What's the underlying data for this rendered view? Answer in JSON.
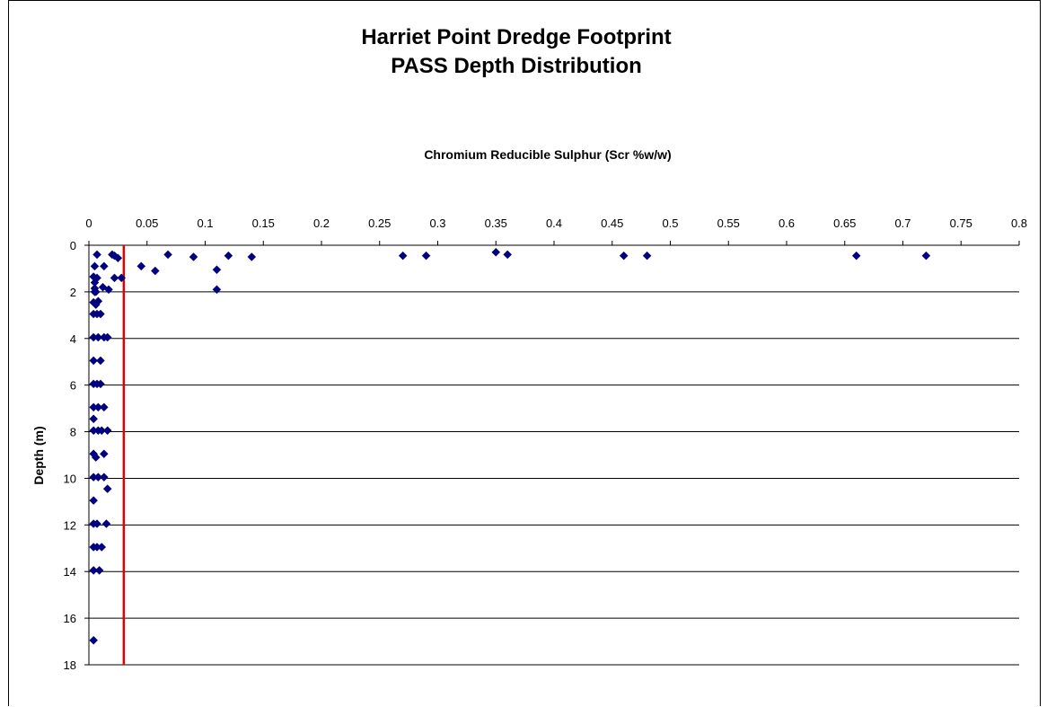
{
  "chart_data": {
    "type": "scatter",
    "title": "Harriet Point Dredge Footprint",
    "subtitle": "PASS Depth Distribution",
    "xlabel": "Chromium Reducible Sulphur (Scr %w/w)",
    "ylabel": "Depth (m)",
    "xlim": [
      0,
      0.8
    ],
    "ylim": [
      0,
      18
    ],
    "y_inverted": true,
    "x_axis_position": "top",
    "x_ticks": [
      "0",
      "0.05",
      "0.1",
      "0.15",
      "0.2",
      "0.25",
      "0.3",
      "0.35",
      "0.4",
      "0.45",
      "0.5",
      "0.55",
      "0.6",
      "0.65",
      "0.7",
      "0.75",
      "0.8"
    ],
    "y_ticks": [
      "0",
      "2",
      "4",
      "6",
      "8",
      "10",
      "12",
      "14",
      "16",
      "18"
    ],
    "grid": "horizontal",
    "marker_color": "#000080",
    "reference_line": {
      "x": 0.03,
      "color": "#e00000"
    },
    "series": [
      {
        "points": [
          [
            0.007,
            0.4
          ],
          [
            0.02,
            0.4
          ],
          [
            0.025,
            0.55
          ],
          [
            0.022,
            0.45
          ],
          [
            0.068,
            0.4
          ],
          [
            0.09,
            0.5
          ],
          [
            0.12,
            0.45
          ],
          [
            0.14,
            0.5
          ],
          [
            0.27,
            0.45
          ],
          [
            0.29,
            0.45
          ],
          [
            0.35,
            0.3
          ],
          [
            0.36,
            0.4
          ],
          [
            0.46,
            0.45
          ],
          [
            0.48,
            0.45
          ],
          [
            0.66,
            0.45
          ],
          [
            0.72,
            0.45
          ],
          [
            0.005,
            0.9
          ],
          [
            0.013,
            0.9
          ],
          [
            0.045,
            0.9
          ],
          [
            0.057,
            1.1
          ],
          [
            0.11,
            1.05
          ],
          [
            0.004,
            1.35
          ],
          [
            0.007,
            1.4
          ],
          [
            0.022,
            1.4
          ],
          [
            0.028,
            1.4
          ],
          [
            0.005,
            1.6
          ],
          [
            0.005,
            1.85
          ],
          [
            0.012,
            1.8
          ],
          [
            0.017,
            1.9
          ],
          [
            0.11,
            1.9
          ],
          [
            0.005,
            2.0
          ],
          [
            0.006,
            2.0
          ],
          [
            0.004,
            2.45
          ],
          [
            0.006,
            2.55
          ],
          [
            0.008,
            2.4
          ],
          [
            0.004,
            2.95
          ],
          [
            0.007,
            2.95
          ],
          [
            0.01,
            2.95
          ],
          [
            0.004,
            3.95
          ],
          [
            0.008,
            3.95
          ],
          [
            0.013,
            3.95
          ],
          [
            0.016,
            3.95
          ],
          [
            0.004,
            4.95
          ],
          [
            0.01,
            4.95
          ],
          [
            0.004,
            5.95
          ],
          [
            0.007,
            5.95
          ],
          [
            0.01,
            5.95
          ],
          [
            0.004,
            6.95
          ],
          [
            0.008,
            6.95
          ],
          [
            0.013,
            6.95
          ],
          [
            0.004,
            7.45
          ],
          [
            0.004,
            7.95
          ],
          [
            0.008,
            7.95
          ],
          [
            0.011,
            7.95
          ],
          [
            0.016,
            7.95
          ],
          [
            0.004,
            8.95
          ],
          [
            0.006,
            9.1
          ],
          [
            0.013,
            8.95
          ],
          [
            0.004,
            9.95
          ],
          [
            0.008,
            9.95
          ],
          [
            0.013,
            9.95
          ],
          [
            0.016,
            10.45
          ],
          [
            0.004,
            10.95
          ],
          [
            0.004,
            11.95
          ],
          [
            0.007,
            11.95
          ],
          [
            0.015,
            11.95
          ],
          [
            0.004,
            12.95
          ],
          [
            0.007,
            12.95
          ],
          [
            0.011,
            12.95
          ],
          [
            0.004,
            13.95
          ],
          [
            0.009,
            13.95
          ],
          [
            0.004,
            16.95
          ]
        ]
      }
    ]
  }
}
